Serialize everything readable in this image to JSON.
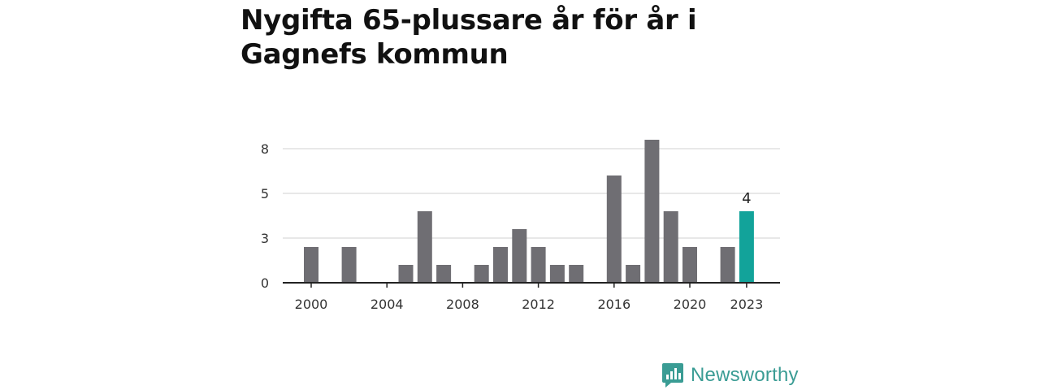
{
  "chart_data": {
    "type": "bar",
    "title": "Nygifta 65-plussare år för år i Gagnefs kommun",
    "xlabel": "",
    "ylabel": "",
    "x": [
      2000,
      2001,
      2002,
      2003,
      2004,
      2005,
      2006,
      2007,
      2008,
      2009,
      2010,
      2011,
      2012,
      2013,
      2014,
      2015,
      2016,
      2017,
      2018,
      2019,
      2020,
      2021,
      2022,
      2023
    ],
    "values": [
      2,
      0,
      2,
      0,
      0,
      1,
      4,
      1,
      0,
      1,
      2,
      3,
      2,
      1,
      1,
      0,
      6,
      1,
      8,
      4,
      2,
      0,
      2,
      4
    ],
    "ylim": [
      0,
      8
    ],
    "yticks": [
      {
        "value": 0,
        "label": "0"
      },
      {
        "value": 2.5,
        "label": "3"
      },
      {
        "value": 5,
        "label": "5"
      },
      {
        "value": 7.5,
        "label": "8"
      }
    ],
    "xticks": [
      "2000",
      "2004",
      "2008",
      "2012",
      "2016",
      "2020",
      "2023"
    ],
    "highlight": {
      "year": 2023,
      "label": "4"
    },
    "colors": {
      "bar": "#6f6e73",
      "highlight": "#12a39a",
      "grid": "#d9d9d9",
      "axis": "#222222"
    }
  },
  "brand": {
    "name": "Newsworthy",
    "icon": "newsworthy-logo-icon",
    "color": "#3a9c94"
  }
}
